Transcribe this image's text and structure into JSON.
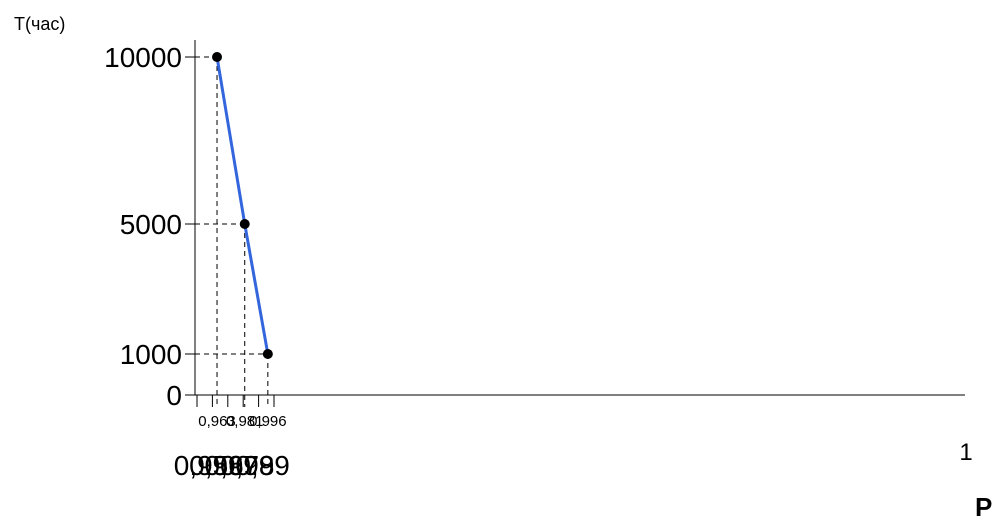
{
  "chart_data": {
    "type": "line",
    "ylabel": "T(час)",
    "xlabel": "P",
    "xlim": [
      0.945,
      1.0
    ],
    "ylim": [
      0,
      10000
    ],
    "x_ticks": [
      {
        "value": 0.95,
        "label": "0,95"
      },
      {
        "value": 0.96,
        "label": "0,96"
      },
      {
        "value": 0.97,
        "label": "0,97"
      },
      {
        "value": 0.98,
        "label": "0,98"
      },
      {
        "value": 0.99,
        "label": "0,99"
      },
      {
        "value": 1.0,
        "label": "1"
      }
    ],
    "y_ticks": [
      {
        "value": 0,
        "label": "0"
      },
      {
        "value": 1000,
        "label": "1000"
      },
      {
        "value": 5000,
        "label": "5000"
      },
      {
        "value": 10000,
        "label": "10000"
      }
    ],
    "series": [
      {
        "color": "#3366dd",
        "points": [
          {
            "x": 0.963,
            "y": 10000,
            "x_label": "0,963"
          },
          {
            "x": 0.981,
            "y": 5000,
            "x_label": "0,981"
          },
          {
            "x": 0.996,
            "y": 1000,
            "x_label": "0,996"
          }
        ]
      }
    ],
    "grid": false
  }
}
